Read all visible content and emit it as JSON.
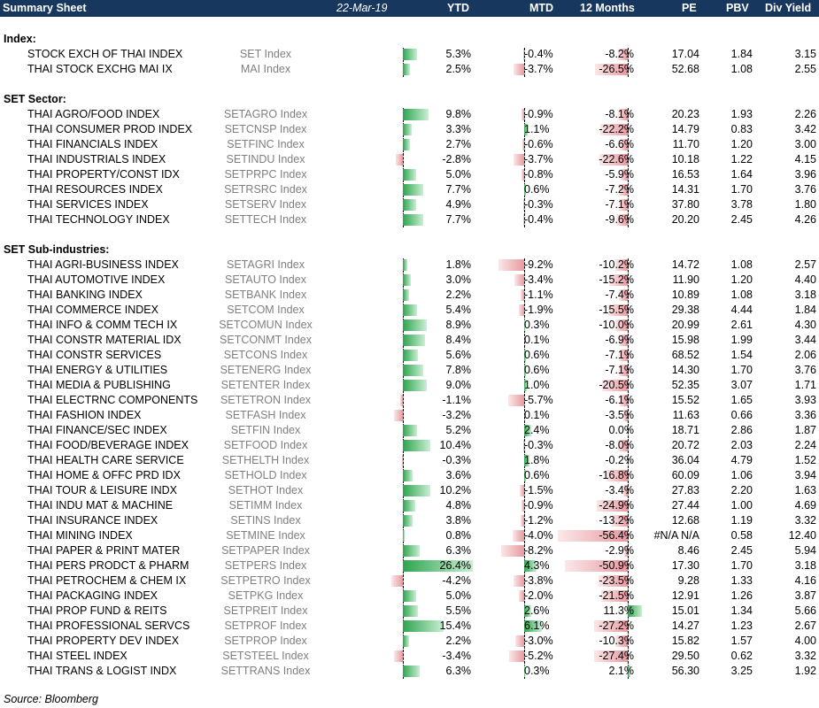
{
  "header": {
    "title": "Summary Sheet",
    "date": "22-Mar-19",
    "ytd": "YTD",
    "mtd": "MTD",
    "m12": "12 Months",
    "pe": "PE",
    "pbv": "PBV",
    "div_yield": "Div Yield"
  },
  "source": "Source: Bloomberg",
  "colors": {
    "header_bg": "#17375e",
    "positive_bar": "#2ea44f",
    "negative_bar": "#e79aa0",
    "ticker_text": "#7f7f7f"
  },
  "sections": [
    {
      "title": "Index:",
      "rows": [
        {
          "name": "STOCK EXCH OF THAI INDEX",
          "ticker": "SET Index",
          "ytd": "5.3%",
          "mtd": "-0.4%",
          "m12": "-8.2%",
          "pe": "17.04",
          "pbv": "1.84",
          "dy": "3.15"
        },
        {
          "name": "THAI STOCK EXCHG MAI IX",
          "ticker": "MAI Index",
          "ytd": "2.5%",
          "mtd": "-3.7%",
          "m12": "-26.5%",
          "pe": "52.68",
          "pbv": "1.08",
          "dy": "2.55"
        }
      ]
    },
    {
      "title": "SET Sector:",
      "rows": [
        {
          "name": "THAI AGRO/FOOD INDEX",
          "ticker": "SETAGRO Index",
          "ytd": "9.8%",
          "mtd": "-0.9%",
          "m12": "-8.1%",
          "pe": "20.23",
          "pbv": "1.93",
          "dy": "2.26"
        },
        {
          "name": "THAI CONSUMER PROD INDEX",
          "ticker": "SETCNSP Index",
          "ytd": "3.3%",
          "mtd": "1.1%",
          "m12": "-22.2%",
          "pe": "14.79",
          "pbv": "0.83",
          "dy": "3.42"
        },
        {
          "name": "THAI FINANCIALS INDEX",
          "ticker": "SETFINC Index",
          "ytd": "2.7%",
          "mtd": "-0.6%",
          "m12": "-6.6%",
          "pe": "11.70",
          "pbv": "1.20",
          "dy": "3.00"
        },
        {
          "name": "THAI INDUSTRIALS INDEX",
          "ticker": "SETINDU Index",
          "ytd": "-2.8%",
          "mtd": "-3.7%",
          "m12": "-22.6%",
          "pe": "10.18",
          "pbv": "1.22",
          "dy": "4.15"
        },
        {
          "name": "THAI PROPERTY/CONST IDX",
          "ticker": "SETPRPC Index",
          "ytd": "5.0%",
          "mtd": "-0.8%",
          "m12": "-5.9%",
          "pe": "16.53",
          "pbv": "1.64",
          "dy": "3.96"
        },
        {
          "name": "THAI RESOURCES INDEX",
          "ticker": "SETRSRC Index",
          "ytd": "7.7%",
          "mtd": "0.6%",
          "m12": "-7.2%",
          "pe": "14.31",
          "pbv": "1.70",
          "dy": "3.76"
        },
        {
          "name": "THAI SERVICES INDEX",
          "ticker": "SETSERV Index",
          "ytd": "4.9%",
          "mtd": "-0.3%",
          "m12": "-7.1%",
          "pe": "37.80",
          "pbv": "3.78",
          "dy": "1.80"
        },
        {
          "name": "THAI TECHNOLOGY INDEX",
          "ticker": "SETTECH Index",
          "ytd": "7.7%",
          "mtd": "-0.4%",
          "m12": "-9.6%",
          "pe": "20.20",
          "pbv": "2.45",
          "dy": "4.26"
        }
      ]
    },
    {
      "title": "SET Sub-industries:",
      "rows": [
        {
          "name": "THAI AGRI-BUSINESS INDEX",
          "ticker": "SETAGRI Index",
          "ytd": "1.8%",
          "mtd": "-9.2%",
          "m12": "-10.2%",
          "pe": "14.72",
          "pbv": "1.08",
          "dy": "2.57"
        },
        {
          "name": "THAI AUTOMOTIVE INDEX",
          "ticker": "SETAUTO Index",
          "ytd": "3.0%",
          "mtd": "-3.4%",
          "m12": "-15.2%",
          "pe": "11.90",
          "pbv": "1.20",
          "dy": "4.40"
        },
        {
          "name": "THAI BANKING INDEX",
          "ticker": "SETBANK Index",
          "ytd": "2.2%",
          "mtd": "-1.1%",
          "m12": "-7.4%",
          "pe": "10.89",
          "pbv": "1.08",
          "dy": "3.18"
        },
        {
          "name": "THAI COMMERCE INDEX",
          "ticker": "SETCOM Index",
          "ytd": "5.4%",
          "mtd": "-1.9%",
          "m12": "-15.5%",
          "pe": "29.38",
          "pbv": "4.44",
          "dy": "1.84"
        },
        {
          "name": "THAI INFO & COMM TECH IX",
          "ticker": "SETCOMUN Index",
          "ytd": "8.9%",
          "mtd": "0.3%",
          "m12": "-10.0%",
          "pe": "20.99",
          "pbv": "2.61",
          "dy": "4.30"
        },
        {
          "name": "THAI CONSTR MATERIAL IDX",
          "ticker": "SETCONMT Index",
          "ytd": "8.4%",
          "mtd": "0.1%",
          "m12": "-6.9%",
          "pe": "15.98",
          "pbv": "1.99",
          "dy": "3.44"
        },
        {
          "name": "THAI CONSTR SERVICES",
          "ticker": "SETCONS Index",
          "ytd": "5.6%",
          "mtd": "0.6%",
          "m12": "-7.1%",
          "pe": "68.52",
          "pbv": "1.54",
          "dy": "2.06"
        },
        {
          "name": "THAI ENERGY & UTILITIES",
          "ticker": "SETENERG Index",
          "ytd": "7.8%",
          "mtd": "0.6%",
          "m12": "-7.1%",
          "pe": "14.30",
          "pbv": "1.70",
          "dy": "3.76"
        },
        {
          "name": "THAI MEDIA & PUBLISHING",
          "ticker": "SETENTER Index",
          "ytd": "9.0%",
          "mtd": "1.0%",
          "m12": "-20.5%",
          "pe": "52.35",
          "pbv": "3.07",
          "dy": "1.71"
        },
        {
          "name": "THAI ELECTRNC COMPONENTS",
          "ticker": "SETETRON Index",
          "ytd": "-1.1%",
          "mtd": "-5.7%",
          "m12": "-6.1%",
          "pe": "15.52",
          "pbv": "1.65",
          "dy": "3.93"
        },
        {
          "name": "THAI FASHION INDEX",
          "ticker": "SETFASH Index",
          "ytd": "-3.2%",
          "mtd": "0.1%",
          "m12": "-3.5%",
          "pe": "11.63",
          "pbv": "0.66",
          "dy": "3.36"
        },
        {
          "name": "THAI FINANCE/SEC INDEX",
          "ticker": "SETFIN Index",
          "ytd": "5.2%",
          "mtd": "2.4%",
          "m12": "0.0%",
          "pe": "18.71",
          "pbv": "2.86",
          "dy": "1.87"
        },
        {
          "name": "THAI FOOD/BEVERAGE INDEX",
          "ticker": "SETFOOD Index",
          "ytd": "10.4%",
          "mtd": "-0.3%",
          "m12": "-8.0%",
          "pe": "20.72",
          "pbv": "2.03",
          "dy": "2.24"
        },
        {
          "name": "THAI HEALTH CARE SERVICE",
          "ticker": "SETHELTH Index",
          "ytd": "-0.3%",
          "mtd": "1.8%",
          "m12": "-0.2%",
          "pe": "36.04",
          "pbv": "4.79",
          "dy": "1.52"
        },
        {
          "name": "THAI HOME & OFFC PRD IDX",
          "ticker": "SETHOLD Index",
          "ytd": "3.6%",
          "mtd": "0.6%",
          "m12": "-16.8%",
          "pe": "60.09",
          "pbv": "1.06",
          "dy": "3.94"
        },
        {
          "name": "THAI TOUR & LEISURE INDX",
          "ticker": "SETHOT Index",
          "ytd": "10.2%",
          "mtd": "-1.5%",
          "m12": "-3.4%",
          "pe": "27.83",
          "pbv": "2.20",
          "dy": "1.63"
        },
        {
          "name": "THAI INDU MAT & MACHINE",
          "ticker": "SETIMM Index",
          "ytd": "4.8%",
          "mtd": "-0.9%",
          "m12": "-24.9%",
          "pe": "27.44",
          "pbv": "1.00",
          "dy": "4.69"
        },
        {
          "name": "THAI INSURANCE INDEX",
          "ticker": "SETINS Index",
          "ytd": "3.8%",
          "mtd": "-1.2%",
          "m12": "-13.2%",
          "pe": "12.68",
          "pbv": "1.19",
          "dy": "3.32"
        },
        {
          "name": "THAI MINING INDEX",
          "ticker": "SETMINE Index",
          "ytd": "0.8%",
          "mtd": "-4.0%",
          "m12": "-56.4%",
          "pe": "#N/A N/A",
          "pbv": "0.58",
          "dy": "12.40"
        },
        {
          "name": "THAI PAPER & PRINT MATER",
          "ticker": "SETPAPER Index",
          "ytd": "6.3%",
          "mtd": "-8.2%",
          "m12": "-2.9%",
          "pe": "8.46",
          "pbv": "2.45",
          "dy": "5.94"
        },
        {
          "name": "THAI PERS PRODCT & PHARM",
          "ticker": "SETPERS Index",
          "ytd": "26.4%",
          "mtd": "4.3%",
          "m12": "-50.9%",
          "pe": "17.30",
          "pbv": "1.70",
          "dy": "3.18"
        },
        {
          "name": "THAI PETROCHEM & CHEM IX",
          "ticker": "SETPETRO Index",
          "ytd": "-4.2%",
          "mtd": "-3.8%",
          "m12": "-23.5%",
          "pe": "9.28",
          "pbv": "1.33",
          "dy": "4.16"
        },
        {
          "name": "THAI PACKAGING INDEX",
          "ticker": "SETPKG Index",
          "ytd": "5.0%",
          "mtd": "-2.0%",
          "m12": "-21.5%",
          "pe": "12.91",
          "pbv": "1.26",
          "dy": "3.87"
        },
        {
          "name": "THAI PROP FUND & REITS",
          "ticker": "SETPREIT Index",
          "ytd": "5.5%",
          "mtd": "2.6%",
          "m12": "11.3%",
          "pe": "15.01",
          "pbv": "1.34",
          "dy": "5.66"
        },
        {
          "name": "THAI PROFESSIONAL SERVCS",
          "ticker": "SETPROF Index",
          "ytd": "15.4%",
          "mtd": "6.1%",
          "m12": "-27.2%",
          "pe": "14.27",
          "pbv": "1.23",
          "dy": "2.67"
        },
        {
          "name": "THAI PROPERTY DEV INDEX",
          "ticker": "SETPROP Index",
          "ytd": "2.2%",
          "mtd": "-3.0%",
          "m12": "-10.3%",
          "pe": "15.82",
          "pbv": "1.57",
          "dy": "4.00"
        },
        {
          "name": "THAI STEEL INDEX",
          "ticker": "SETSTEEL Index",
          "ytd": "-3.4%",
          "mtd": "-5.2%",
          "m12": "-27.4%",
          "pe": "29.50",
          "pbv": "0.62",
          "dy": "3.32"
        },
        {
          "name": "THAI TRANS & LOGIST INDX",
          "ticker": "SETTRANS Index",
          "ytd": "6.3%",
          "mtd": "0.3%",
          "m12": "2.1%",
          "pe": "56.30",
          "pbv": "3.25",
          "dy": "1.92"
        }
      ]
    }
  ]
}
